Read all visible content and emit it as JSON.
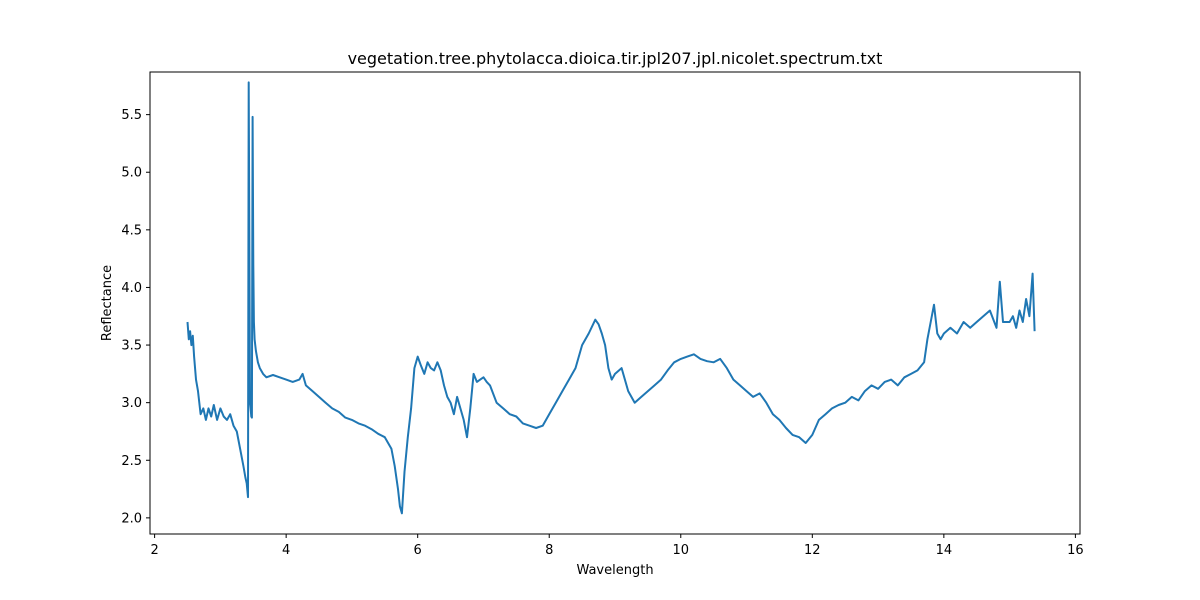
{
  "chart_data": {
    "type": "line",
    "title": "vegetation.tree.phytolacca.dioica.tir.jpl207.jpl.nicolet.spectrum.txt",
    "xlabel": "Wavelength",
    "ylabel": "Reflectance",
    "xlim": [
      1.93,
      16.07
    ],
    "ylim": [
      1.86,
      5.87
    ],
    "xticks": [
      2,
      4,
      6,
      8,
      10,
      12,
      14,
      16
    ],
    "yticks": [
      2.0,
      2.5,
      3.0,
      3.5,
      4.0,
      4.5,
      5.0,
      5.5
    ],
    "grid": false,
    "color": "#1f77b4",
    "series": [
      {
        "x": [
          2.5,
          2.52,
          2.54,
          2.56,
          2.58,
          2.6,
          2.63,
          2.66,
          2.7,
          2.74,
          2.78,
          2.82,
          2.86,
          2.9,
          2.95,
          3.0,
          3.05,
          3.1,
          3.15,
          3.2,
          3.25,
          3.3,
          3.35,
          3.38,
          3.4,
          3.42,
          3.43,
          3.44,
          3.45,
          3.46,
          3.47,
          3.48,
          3.49,
          3.5,
          3.51,
          3.52,
          3.54,
          3.57,
          3.6,
          3.65,
          3.7,
          3.8,
          3.9,
          4.0,
          4.1,
          4.2,
          4.25,
          4.3,
          4.4,
          4.5,
          4.6,
          4.7,
          4.8,
          4.9,
          5.0,
          5.1,
          5.2,
          5.3,
          5.4,
          5.5,
          5.55,
          5.6,
          5.65,
          5.7,
          5.73,
          5.76,
          5.8,
          5.85,
          5.9,
          5.95,
          6.0,
          6.05,
          6.1,
          6.15,
          6.2,
          6.25,
          6.3,
          6.35,
          6.4,
          6.45,
          6.5,
          6.55,
          6.6,
          6.65,
          6.7,
          6.75,
          6.8,
          6.85,
          6.9,
          6.95,
          7.0,
          7.05,
          7.1,
          7.2,
          7.3,
          7.4,
          7.5,
          7.6,
          7.7,
          7.8,
          7.9,
          8.0,
          8.1,
          8.2,
          8.3,
          8.4,
          8.5,
          8.6,
          8.7,
          8.75,
          8.8,
          8.85,
          8.9,
          8.95,
          9.0,
          9.1,
          9.2,
          9.3,
          9.4,
          9.5,
          9.6,
          9.7,
          9.8,
          9.9,
          10.0,
          10.1,
          10.2,
          10.3,
          10.4,
          10.5,
          10.6,
          10.7,
          10.8,
          10.9,
          11.0,
          11.1,
          11.2,
          11.3,
          11.4,
          11.5,
          11.6,
          11.7,
          11.8,
          11.9,
          12.0,
          12.1,
          12.2,
          12.3,
          12.4,
          12.5,
          12.6,
          12.7,
          12.8,
          12.9,
          13.0,
          13.1,
          13.2,
          13.3,
          13.4,
          13.5,
          13.6,
          13.7,
          13.75,
          13.8,
          13.85,
          13.9,
          13.95,
          14.0,
          14.1,
          14.2,
          14.3,
          14.4,
          14.5,
          14.6,
          14.7,
          14.8,
          14.85,
          14.9,
          15.0,
          15.05,
          15.1,
          15.15,
          15.2,
          15.25,
          15.3,
          15.35,
          15.38
        ],
        "y": [
          3.7,
          3.55,
          3.62,
          3.5,
          3.58,
          3.4,
          3.2,
          3.1,
          2.9,
          2.95,
          2.85,
          2.95,
          2.88,
          2.98,
          2.85,
          2.95,
          2.88,
          2.85,
          2.9,
          2.8,
          2.75,
          2.6,
          2.45,
          2.35,
          2.3,
          2.18,
          5.78,
          4.5,
          3.0,
          2.95,
          2.88,
          2.87,
          5.48,
          4.2,
          3.7,
          3.55,
          3.45,
          3.35,
          3.3,
          3.25,
          3.22,
          3.24,
          3.22,
          3.2,
          3.18,
          3.2,
          3.25,
          3.15,
          3.1,
          3.05,
          3.0,
          2.95,
          2.92,
          2.87,
          2.85,
          2.82,
          2.8,
          2.77,
          2.73,
          2.7,
          2.65,
          2.6,
          2.45,
          2.25,
          2.1,
          2.04,
          2.4,
          2.7,
          2.95,
          3.3,
          3.4,
          3.32,
          3.25,
          3.35,
          3.3,
          3.28,
          3.35,
          3.28,
          3.15,
          3.05,
          3.0,
          2.9,
          3.05,
          2.95,
          2.85,
          2.7,
          2.95,
          3.25,
          3.18,
          3.2,
          3.22,
          3.18,
          3.15,
          3.0,
          2.95,
          2.9,
          2.88,
          2.82,
          2.8,
          2.78,
          2.8,
          2.9,
          3.0,
          3.1,
          3.2,
          3.3,
          3.5,
          3.6,
          3.72,
          3.68,
          3.6,
          3.5,
          3.3,
          3.2,
          3.25,
          3.3,
          3.1,
          3.0,
          3.05,
          3.1,
          3.15,
          3.2,
          3.28,
          3.35,
          3.38,
          3.4,
          3.42,
          3.38,
          3.36,
          3.35,
          3.38,
          3.3,
          3.2,
          3.15,
          3.1,
          3.05,
          3.08,
          3.0,
          2.9,
          2.85,
          2.78,
          2.72,
          2.7,
          2.65,
          2.72,
          2.85,
          2.9,
          2.95,
          2.98,
          3.0,
          3.05,
          3.02,
          3.1,
          3.15,
          3.12,
          3.18,
          3.2,
          3.15,
          3.22,
          3.25,
          3.28,
          3.35,
          3.55,
          3.7,
          3.85,
          3.6,
          3.55,
          3.6,
          3.65,
          3.6,
          3.7,
          3.65,
          3.7,
          3.75,
          3.8,
          3.65,
          4.05,
          3.7,
          3.7,
          3.75,
          3.65,
          3.8,
          3.7,
          3.9,
          3.75,
          4.12,
          3.62
        ]
      }
    ]
  }
}
